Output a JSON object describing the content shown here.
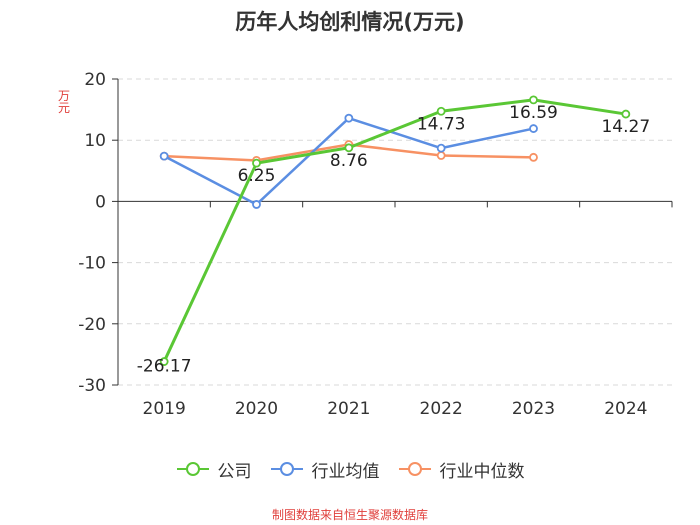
{
  "page": {
    "title": "历年人均创利情况(万元)",
    "source": "制图数据来自恒生聚源数据库"
  },
  "chart_data": {
    "type": "line",
    "title": "历年人均创利情况(万元)",
    "ylabel": "万元",
    "xlabel": "",
    "ylim": [
      -30,
      20
    ],
    "yticks": [
      20,
      10,
      0,
      -10,
      -20,
      -30
    ],
    "ytick_labels": [
      "20",
      "10",
      "0",
      "-10",
      "-20",
      "-30"
    ],
    "categories": [
      "2019",
      "2020",
      "2021",
      "2022",
      "2023",
      "2024"
    ],
    "grid": true,
    "legend_position": "bottom",
    "series": [
      {
        "name": "公司",
        "color": "#5ac735",
        "values": [
          -26.17,
          6.25,
          8.76,
          14.73,
          16.59,
          14.27
        ],
        "labels": [
          "-26.17",
          "6.25",
          "8.76",
          "14.73",
          "16.59",
          "14.27"
        ]
      },
      {
        "name": "行业均值",
        "color": "#5b8ee2",
        "values": [
          7.4,
          -0.5,
          13.6,
          8.7,
          11.9,
          null
        ]
      },
      {
        "name": "行业中位数",
        "color": "#f79163",
        "values": [
          7.4,
          6.7,
          9.3,
          7.5,
          7.2,
          null
        ]
      }
    ]
  }
}
